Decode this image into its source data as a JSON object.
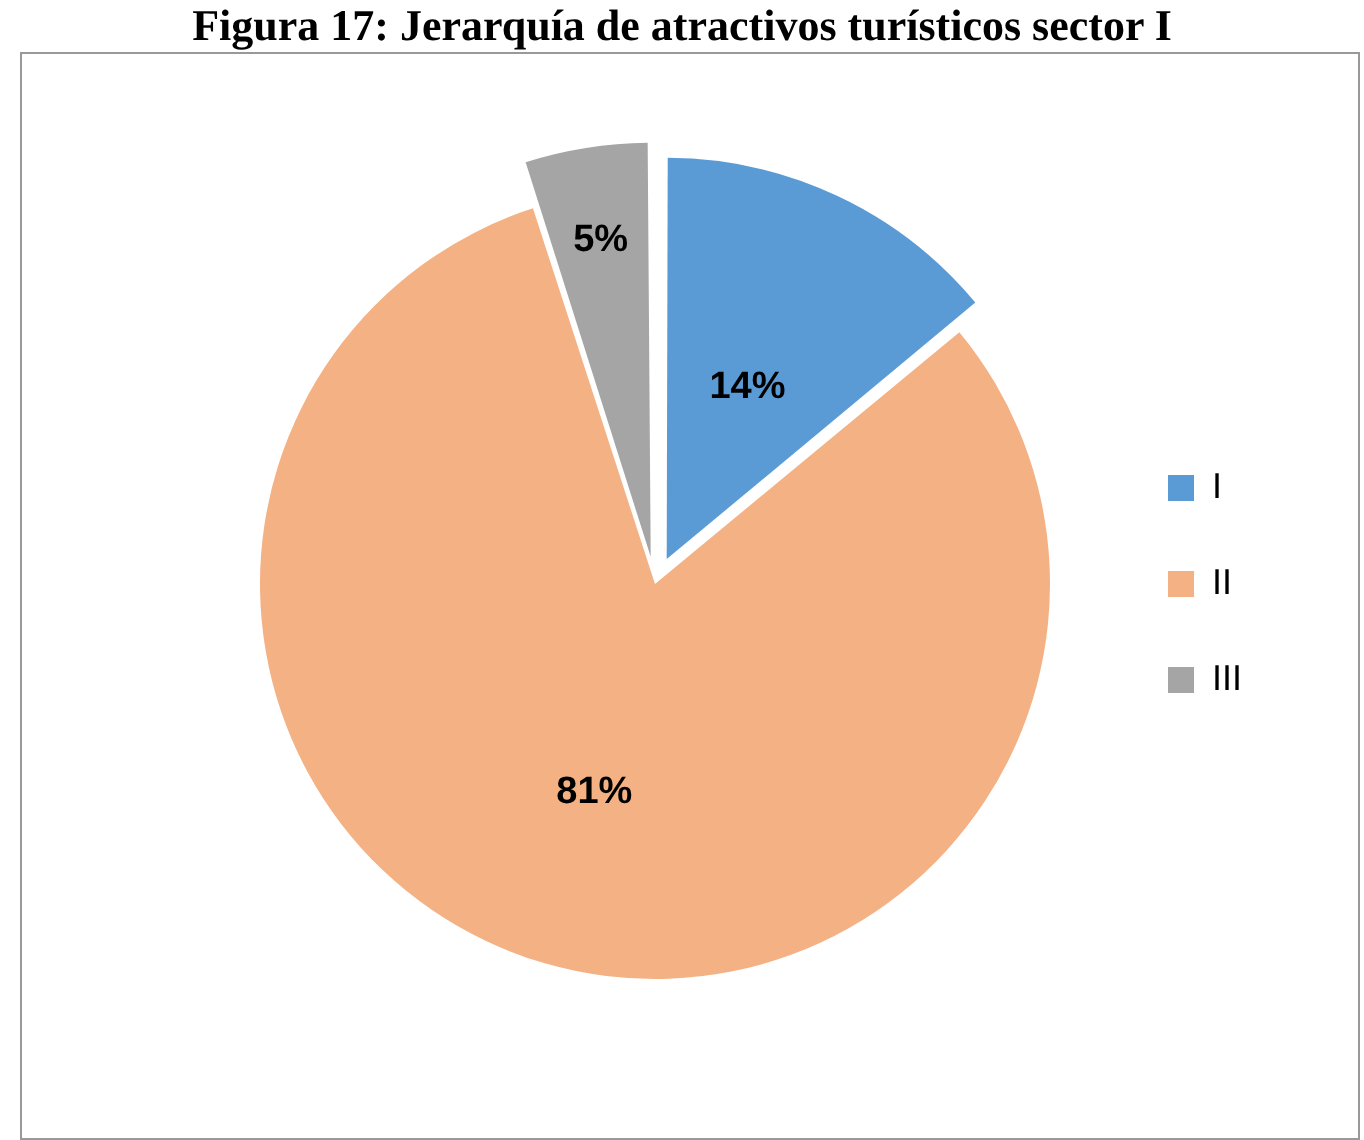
{
  "chart_data": {
    "type": "pie",
    "title": "Figura 17: Jerarquía de atractivos turísticos sector I",
    "categories": [
      "I",
      "II",
      "III"
    ],
    "values": [
      14,
      81,
      5
    ],
    "colors": [
      "#5b9bd5",
      "#f4b183",
      "#a5a5a5"
    ],
    "value_labels": [
      "14%",
      "81%",
      "5%"
    ],
    "legend": "right"
  }
}
